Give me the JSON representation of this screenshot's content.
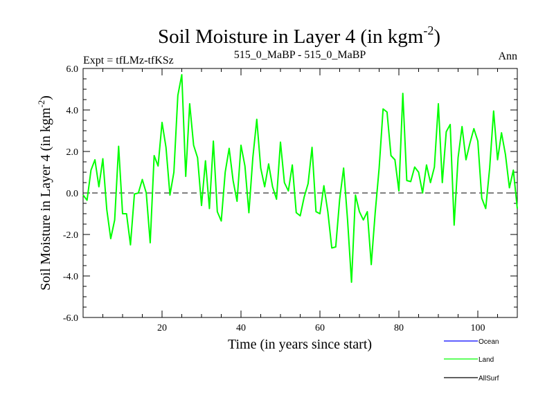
{
  "chart_data": {
    "type": "line",
    "title": "Soil Moisture in Layer 4 (in kgm",
    "title_sup": "-2",
    "title_end": ")",
    "subtitle_left": "Expt = tfLMz-tfKSz",
    "subtitle_center": "515_0_MaBP - 515_0_MaBP",
    "subtitle_right": "Ann",
    "xlabel": "Time (in years since start)",
    "ylabel": "Soil Moisture in Layer 4 (in kgm",
    "ylabel_sup": "-2",
    "ylabel_end": ")",
    "xlim": [
      0,
      110
    ],
    "ylim": [
      -6,
      6
    ],
    "xticks": [
      20,
      40,
      60,
      80,
      100
    ],
    "xtick_labels": [
      "20",
      "40",
      "60",
      "80",
      "100"
    ],
    "yticks": [
      -6,
      -4,
      -2,
      0,
      2,
      4,
      6
    ],
    "ytick_labels": [
      "-6.0",
      "-4.0",
      "-2.0",
      "0.0",
      "2.0",
      "4.0",
      "6.0"
    ],
    "zero_line": "dashed",
    "legend_position": "bottom-right",
    "legend": [
      {
        "name": "Ocean",
        "color": "#0000ff"
      },
      {
        "name": "Land",
        "color": "#00ff00"
      },
      {
        "name": "AllSurf",
        "color": "#000000"
      }
    ],
    "series": [
      {
        "name": "Land",
        "color": "#00ff00",
        "x": [
          0,
          1,
          2,
          3,
          4,
          5,
          6,
          7,
          8,
          9,
          10,
          11,
          12,
          13,
          14,
          15,
          16,
          17,
          18,
          19,
          20,
          21,
          22,
          23,
          24,
          25,
          26,
          27,
          28,
          29,
          30,
          31,
          32,
          33,
          34,
          35,
          36,
          37,
          38,
          39,
          40,
          41,
          42,
          43,
          44,
          45,
          46,
          47,
          48,
          49,
          50,
          51,
          52,
          53,
          54,
          55,
          56,
          57,
          58,
          59,
          60,
          61,
          62,
          63,
          64,
          65,
          66,
          67,
          68,
          69,
          70,
          71,
          72,
          73,
          74,
          75,
          76,
          77,
          78,
          79,
          80,
          81,
          82,
          83,
          84,
          85,
          86,
          87,
          88,
          89,
          90,
          91,
          92,
          93,
          94,
          95,
          96,
          97,
          98,
          99,
          100,
          101,
          102,
          103,
          104,
          105,
          106,
          107,
          108,
          109,
          110
        ],
        "values": [
          -0.1,
          -0.35,
          1.1,
          1.6,
          0.3,
          1.65,
          -0.8,
          -2.2,
          -1.3,
          2.25,
          -1.0,
          -1.0,
          -2.5,
          -0.05,
          0.0,
          0.65,
          0.0,
          -2.4,
          1.8,
          1.3,
          3.4,
          2.2,
          -0.1,
          1.0,
          4.7,
          5.7,
          0.8,
          4.3,
          2.3,
          1.7,
          -0.6,
          1.55,
          -0.75,
          2.5,
          -0.9,
          -1.35,
          1.0,
          2.15,
          0.6,
          -0.4,
          2.3,
          1.3,
          -0.95,
          1.7,
          3.55,
          1.2,
          0.3,
          1.4,
          0.3,
          -0.3,
          2.45,
          0.5,
          0.1,
          1.35,
          -0.95,
          -1.1,
          -0.2,
          0.45,
          2.2,
          -0.9,
          -1.0,
          0.35,
          -0.9,
          -2.65,
          -2.6,
          -0.3,
          1.2,
          -1.3,
          -4.3,
          -0.1,
          -0.9,
          -1.3,
          -0.9,
          -3.45,
          -0.95,
          1.2,
          4.05,
          3.9,
          1.8,
          1.6,
          0.1,
          4.8,
          0.6,
          0.55,
          1.25,
          1.0,
          0.0,
          1.35,
          0.5,
          1.25,
          4.3,
          0.5,
          2.95,
          3.3,
          -1.55,
          1.7,
          3.2,
          1.6,
          2.4,
          3.1,
          2.5,
          -0.25,
          -0.75,
          1.2,
          3.95,
          1.6,
          2.9,
          1.85,
          0.25,
          1.1,
          -0.75
        ]
      }
    ]
  }
}
